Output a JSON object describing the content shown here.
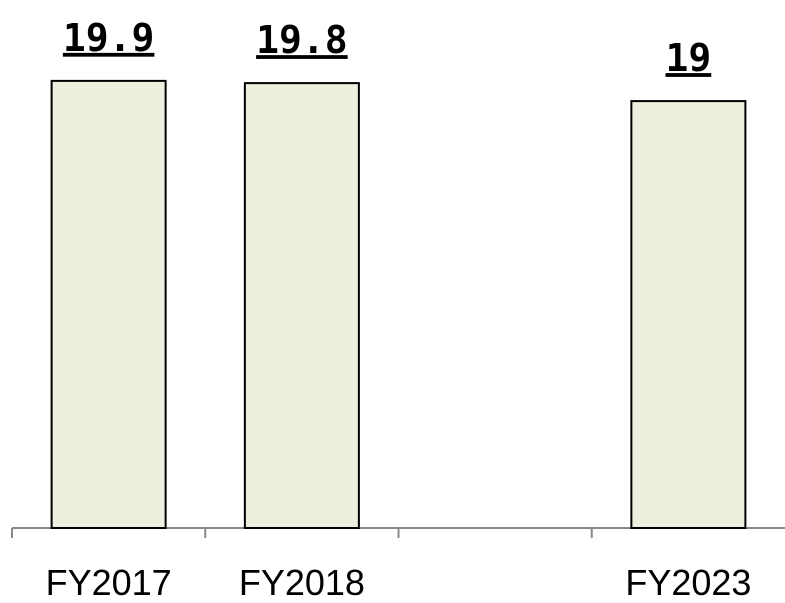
{
  "chart_data": {
    "type": "bar",
    "categories": [
      "FY2017",
      "FY2018",
      null,
      "FY2023"
    ],
    "values": [
      19.9,
      19.8,
      null,
      19
    ],
    "color": "#ebf1de",
    "ylim": [
      0,
      23.5
    ]
  }
}
